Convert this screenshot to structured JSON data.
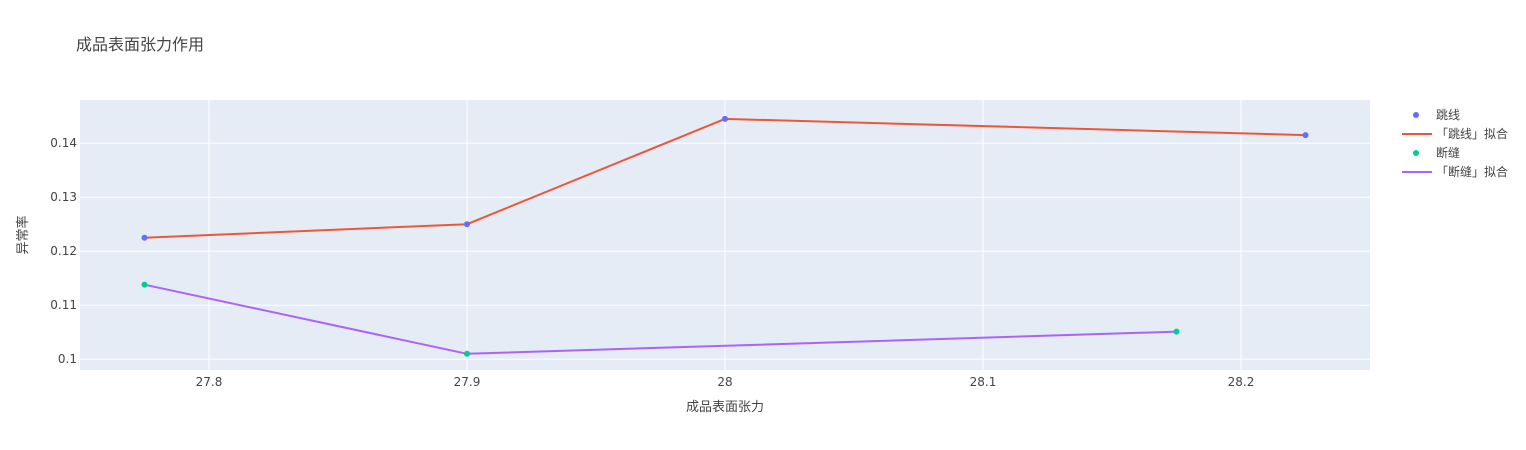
{
  "chart_data": {
    "type": "scatter",
    "title": "成品表面张力作用",
    "xlabel": "成品表面张力",
    "ylabel": "异常率",
    "xlim": [
      27.75,
      28.25
    ],
    "ylim": [
      0.098,
      0.148
    ],
    "xticks": [
      27.8,
      27.9,
      28,
      28.1,
      28.2
    ],
    "xtick_labels": [
      "27.8",
      "27.9",
      "28",
      "28.1",
      "28.2"
    ],
    "yticks": [
      0.1,
      0.11,
      0.12,
      0.13,
      0.14
    ],
    "ytick_labels": [
      "0.1",
      "0.11",
      "0.12",
      "0.13",
      "0.14"
    ],
    "grid": true,
    "legend_position": "right",
    "series": [
      {
        "name": "跳线",
        "mode": "markers",
        "color": "#636efa",
        "x": [
          27.775,
          27.9,
          28.0,
          28.225
        ],
        "y": [
          0.1225,
          0.125,
          0.1445,
          0.1415
        ]
      },
      {
        "name": "「跳线」拟合",
        "mode": "lines",
        "color": "#ef553b",
        "x": [
          27.775,
          27.9,
          28.0,
          28.225
        ],
        "y": [
          0.1225,
          0.125,
          0.1445,
          0.1415
        ]
      },
      {
        "name": "断缝",
        "mode": "markers",
        "color": "#00cc96",
        "x": [
          27.775,
          27.9,
          28.175
        ],
        "y": [
          0.1138,
          0.101,
          0.1051
        ]
      },
      {
        "name": "「断缝」拟合",
        "mode": "lines",
        "color": "#ab63fa",
        "x": [
          27.775,
          27.9,
          28.175
        ],
        "y": [
          0.1138,
          0.101,
          0.1051
        ]
      }
    ]
  }
}
